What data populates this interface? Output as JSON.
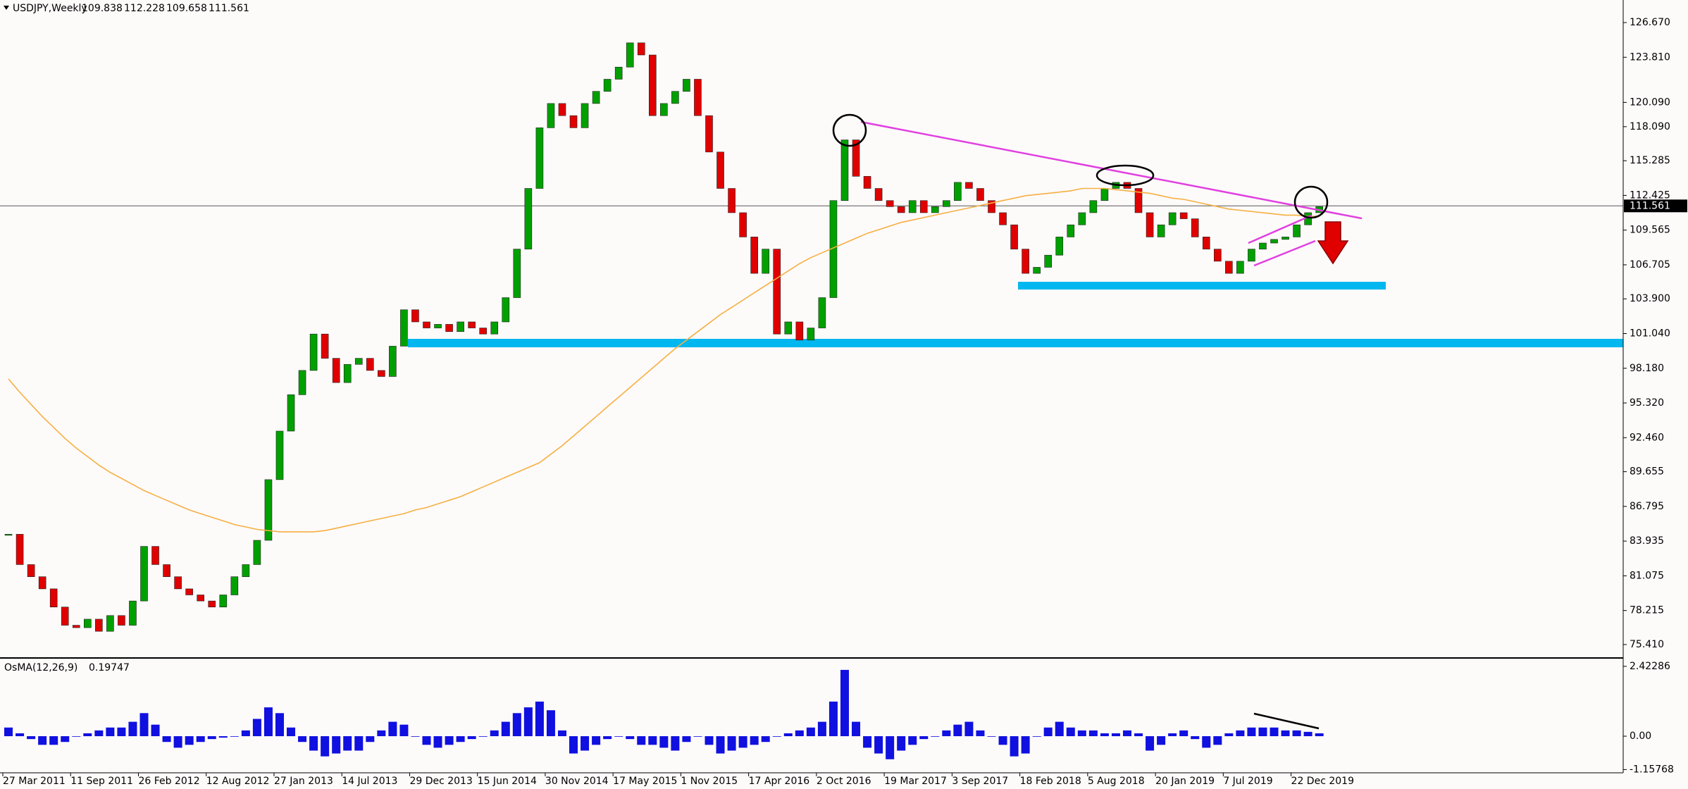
{
  "chart_data": {
    "type": "candlestick",
    "title": "USDJPY,Weekly",
    "ohlc": [
      109.838,
      112.228,
      109.658,
      111.561
    ],
    "last_price": 111.561,
    "up_color": "#00a000",
    "down_color": "#e00000",
    "ma_color": "#f5b041",
    "ylim": [
      74.42,
      128.53
    ],
    "yticks": [
      {
        "value": 126.67,
        "label": "126.670"
      },
      {
        "value": 123.81,
        "label": "123.810"
      },
      {
        "value": 120.09,
        "label": "120.090"
      },
      {
        "value": 118.09,
        "label": "118.090"
      },
      115.285,
      {
        "value": 112.425,
        "label": "112.425"
      },
      109.565,
      106.705,
      {
        "value": 103.9,
        "label": "103.900"
      },
      {
        "value": 101.04,
        "label": "101.040"
      },
      {
        "value": 98.18,
        "label": "98.180"
      },
      {
        "value": 95.32,
        "label": "95.320"
      },
      {
        "value": 92.46,
        "label": "92.460"
      },
      89.655,
      86.795,
      83.935,
      81.075,
      78.215,
      {
        "value": 75.41,
        "label": "75.410"
      }
    ],
    "xlabels": [
      "27 Mar 2011",
      "11 Sep 2011",
      "26 Feb 2012",
      "12 Aug 2012",
      "27 Jan 2013",
      "14 Jul 2013",
      "29 Dec 2013",
      "15 Jun 2014",
      "30 Nov 2014",
      "17 May 2015",
      "1 Nov 2015",
      "17 Apr 2016",
      "2 Oct 2016",
      "19 Mar 2017",
      "3 Sep 2017",
      "18 Feb 2018",
      "5 Aug 2018",
      "20 Jan 2019",
      "7 Jul 2019",
      "22 Dec 2019"
    ],
    "close": [
      84.5,
      82,
      81,
      80,
      78.5,
      77,
      76.8,
      77.5,
      76.5,
      77.8,
      77,
      79,
      83.5,
      82,
      81,
      80,
      79.5,
      79,
      78.5,
      79.5,
      81,
      82,
      84,
      89,
      93,
      96,
      98,
      101,
      99,
      97,
      98.5,
      99,
      98,
      97.5,
      100,
      103,
      102,
      101.5,
      101.8,
      101.2,
      102,
      101.5,
      101,
      102,
      104,
      108,
      113,
      118,
      120,
      119,
      118,
      120,
      121,
      122,
      123,
      125,
      124,
      119,
      120,
      121,
      122,
      119,
      116,
      113,
      111,
      109,
      106,
      108,
      101,
      102,
      100.5,
      101.5,
      104,
      112,
      117,
      114,
      113,
      112,
      111.5,
      111,
      112,
      111,
      111.5,
      112,
      113.5,
      113,
      112,
      111,
      110,
      108,
      106,
      106.5,
      107.5,
      109,
      110,
      111,
      112,
      113,
      113.5,
      113,
      111,
      109,
      110,
      111,
      110.5,
      109,
      108,
      107,
      106,
      107,
      108,
      108.5,
      108.8,
      109,
      110,
      111,
      111.5
    ],
    "ma": [
      97.3,
      96.2,
      95.2,
      94.2,
      93.3,
      92.4,
      91.6,
      90.9,
      90.2,
      89.6,
      89.1,
      88.6,
      88.1,
      87.7,
      87.3,
      86.9,
      86.5,
      86.2,
      85.9,
      85.6,
      85.3,
      85.1,
      84.9,
      84.8,
      84.7,
      84.7,
      84.7,
      84.7,
      84.8,
      85.0,
      85.2,
      85.4,
      85.6,
      85.8,
      86.0,
      86.2,
      86.5,
      86.7,
      87.0,
      87.3,
      87.6,
      88.0,
      88.4,
      88.8,
      89.2,
      89.6,
      90.0,
      90.4,
      91.1,
      91.8,
      92.6,
      93.4,
      94.2,
      95.0,
      95.8,
      96.6,
      97.4,
      98.2,
      99.0,
      99.8,
      100.5,
      101.2,
      101.9,
      102.6,
      103.2,
      103.8,
      104.4,
      105.0,
      105.6,
      106.2,
      106.8,
      107.3,
      107.7,
      108.1,
      108.5,
      108.9,
      109.3,
      109.6,
      109.9,
      110.2,
      110.4,
      110.6,
      110.8,
      111.0,
      111.2,
      111.4,
      111.6,
      111.8,
      112.0,
      112.2,
      112.4,
      112.5,
      112.6,
      112.7,
      112.8,
      113.0,
      113.0,
      113.0,
      112.9,
      112.8,
      112.7,
      112.6,
      112.4,
      112.2,
      112.1,
      111.9,
      111.7,
      111.5,
      111.3,
      111.2,
      111.1,
      111.0,
      110.9,
      110.8,
      110.8,
      110.7,
      110.7
    ],
    "oscillator": {
      "name": "OsMA(12,26,9)",
      "current": 0.19747,
      "color": "#1010e0",
      "ylim": [
        -1.27,
        2.64
      ],
      "yticks": [
        2.42286,
        {
          "value": 0,
          "label": "0.00"
        },
        -1.15768
      ],
      "values": [
        0.3,
        0.1,
        -0.1,
        -0.3,
        -0.3,
        -0.2,
        0,
        0.1,
        0.2,
        0.3,
        0.3,
        0.5,
        0.8,
        0.4,
        -0.2,
        -0.4,
        -0.3,
        -0.2,
        -0.1,
        -0.05,
        0,
        0.2,
        0.6,
        1.0,
        0.8,
        0.3,
        -0.2,
        -0.5,
        -0.7,
        -0.6,
        -0.5,
        -0.5,
        -0.2,
        0.2,
        0.5,
        0.4,
        0,
        -0.3,
        -0.4,
        -0.3,
        -0.2,
        -0.1,
        0,
        0.2,
        0.5,
        0.8,
        1.0,
        1.2,
        0.9,
        0.2,
        -0.6,
        -0.5,
        -0.3,
        -0.1,
        0,
        -0.1,
        -0.3,
        -0.3,
        -0.4,
        -0.5,
        -0.2,
        0,
        -0.3,
        -0.6,
        -0.5,
        -0.4,
        -0.3,
        -0.2,
        0,
        0.1,
        0.2,
        0.3,
        0.5,
        1.2,
        2.3,
        0.5,
        -0.4,
        -0.6,
        -0.8,
        -0.5,
        -0.3,
        -0.1,
        0,
        0.2,
        0.4,
        0.5,
        0.2,
        0,
        -0.3,
        -0.7,
        -0.6,
        0,
        0.3,
        0.5,
        0.3,
        0.2,
        0.2,
        0.1,
        0.1,
        0.2,
        0.1,
        -0.5,
        -0.3,
        0.1,
        0.2,
        -0.1,
        -0.4,
        -0.3,
        0.1,
        0.2,
        0.3,
        0.3,
        0.3,
        0.2,
        0.2,
        0.15,
        0.1
      ]
    }
  }
}
